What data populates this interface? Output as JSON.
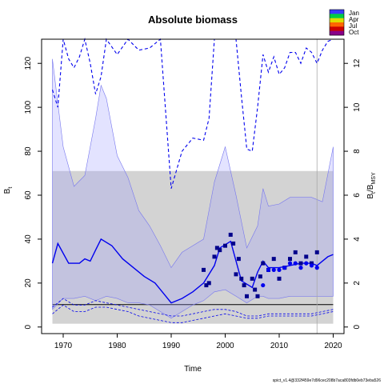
{
  "chart_data": {
    "type": "line",
    "title": "Absolute biomass",
    "xlabel": "Time",
    "ylabel_left": "B",
    "ylabel_left_sub": "t",
    "ylabel_right": "B",
    "ylabel_right_sub": "t",
    "ylabel_right_suffix": "/B",
    "ylabel_right_suffix_sub": "MSY",
    "xlim": [
      1966,
      2022
    ],
    "ylim_left": [
      -3,
      131
    ],
    "ylim_right": [
      -0.3,
      13.1
    ],
    "x_ticks": [
      1970,
      1980,
      1990,
      2000,
      2010,
      2020
    ],
    "y_ticks_left": [
      0,
      20,
      40,
      60,
      80,
      100,
      120
    ],
    "y_ticks_right": [
      0,
      2,
      4,
      6,
      8,
      10,
      12
    ],
    "bmsy_band": {
      "lower": 1.5,
      "upper": 71,
      "line": 10.2,
      "x_from": 1968,
      "x_to": 2020
    },
    "ci_x": [
      1968,
      1970,
      1972,
      1974,
      1976,
      1977,
      1978,
      1980,
      1982,
      1984,
      1986,
      1988,
      1990,
      1992,
      1994,
      1996,
      1998,
      2000,
      2002,
      2004,
      2006,
      2007,
      2008,
      2010,
      2012,
      2014,
      2016,
      2018,
      2020
    ],
    "ci_upper": [
      122,
      82,
      64,
      69,
      95,
      110,
      104,
      78,
      68,
      53,
      46,
      37,
      27,
      34,
      37,
      40,
      66,
      82,
      60,
      36,
      46,
      63,
      55,
      56,
      59,
      59,
      59,
      57,
      82
    ],
    "ci_lower": [
      8,
      13,
      13,
      14,
      12,
      13,
      14,
      13,
      11,
      11,
      10,
      7,
      4,
      7,
      10,
      12,
      16,
      17,
      14,
      11,
      14,
      14,
      13,
      13,
      14,
      14,
      14,
      14,
      14
    ],
    "biomass_x": [
      1968,
      1969,
      1971,
      1973,
      1974,
      1975,
      1976,
      1977,
      1979,
      1981,
      1983,
      1985,
      1987,
      1989,
      1990,
      1992,
      1994,
      1996,
      1998,
      1999,
      2001,
      2003,
      2005,
      2006,
      2007,
      2008,
      2010,
      2012,
      2014,
      2016,
      2017,
      2018,
      2019,
      2020
    ],
    "biomass_fit": [
      29,
      38,
      29,
      29,
      31,
      30,
      35,
      40,
      37,
      31,
      27,
      23,
      20,
      14,
      11,
      13,
      16,
      20,
      28,
      36,
      39,
      21,
      18,
      25,
      30,
      27,
      27,
      28,
      29,
      29,
      28,
      30,
      32,
      33
    ],
    "biomass_upper_x": [
      1968,
      1970,
      1972,
      1974,
      1976,
      1978,
      1980,
      1982,
      1984,
      1986,
      1988,
      1990,
      1992,
      1994,
      1996,
      1998,
      2000,
      2002,
      2004,
      2006,
      2008,
      2010,
      2012,
      2014,
      2016,
      2018,
      2020
    ],
    "biomass_upper": [
      9,
      13,
      10,
      10,
      12,
      11,
      10,
      9,
      8,
      7,
      6,
      5,
      5,
      6,
      7,
      8,
      8,
      7,
      5,
      5,
      6,
      6,
      6,
      6,
      6,
      7,
      8
    ],
    "biomass_lower": [
      6,
      10,
      7,
      7,
      9,
      9,
      8,
      7,
      5,
      4,
      3,
      2,
      2,
      3,
      4,
      5,
      6,
      5,
      4,
      4,
      5,
      5,
      5,
      5,
      5,
      6,
      7
    ],
    "fmsy_dashed_x": [
      1968,
      1969,
      1970,
      1971,
      1972,
      1973,
      1974,
      1975,
      1976,
      1977,
      1978,
      1980,
      1982,
      1984,
      1986,
      1988,
      1990,
      1992,
      1994,
      1996,
      1997,
      1998,
      2000,
      2002,
      2003,
      2004,
      2005,
      2006,
      2007,
      2008,
      2009,
      2010,
      2011,
      2012,
      2013,
      2014,
      2015,
      2016,
      2017,
      2018,
      2019,
      2020
    ],
    "fmsy_dashed": [
      10.8,
      10.0,
      13.4,
      12.2,
      11.8,
      12.3,
      13.5,
      12.0,
      10.6,
      11.4,
      14.0,
      12.4,
      13.2,
      12.6,
      12.7,
      13.4,
      6.3,
      8.0,
      8.6,
      8.5,
      9.5,
      14.5,
      16.0,
      14.0,
      10.5,
      8.1,
      8.0,
      10.0,
      12.4,
      11.6,
      12.3,
      11.5,
      11.8,
      12.5,
      12.5,
      12.0,
      12.7,
      12.5,
      12.0,
      12.6,
      13.0,
      13.5
    ],
    "index_points": {
      "x": [
        1996,
        1996.5,
        1997,
        1998,
        1998.5,
        1999,
        2000,
        2001,
        2001.5,
        2002,
        2002.5,
        2003,
        2003.5,
        2004,
        2005,
        2005.5,
        2006,
        2006.5,
        2007,
        2008,
        2009,
        2010,
        2011,
        2012,
        2013,
        2014,
        2015,
        2016,
        2017
      ],
      "y": [
        26,
        19,
        20,
        32,
        36,
        35,
        37,
        42,
        38,
        24,
        31,
        22,
        19,
        14,
        22,
        17,
        14,
        23,
        29,
        26,
        31,
        22,
        27,
        31,
        34,
        29,
        32,
        29,
        34
      ]
    },
    "index_points_secondary": {
      "x": [
        2007,
        2008,
        2009,
        2010,
        2011,
        2012,
        2013,
        2014,
        2015,
        2016,
        2017
      ],
      "y": [
        19,
        26,
        26,
        26,
        27,
        29,
        29,
        27,
        29,
        28,
        27
      ]
    },
    "vline_x": 2017,
    "legend": [
      "Jan",
      "Apr",
      "Jul",
      "Oct"
    ],
    "legend_colors": [
      "#3a3aff",
      "#00cc44",
      "#dddd00",
      "#ff6600",
      "#cc0000",
      "#880088"
    ],
    "colors": {
      "band": "#d3d3d3",
      "ci_fill": "#9999ff",
      "line": "#0000ee",
      "points": "#00008b",
      "vline": "#aaaaaa"
    },
    "footnote": "spict_v1.4@332f459e7d96cec208b7aca803fdb0eb73eba526"
  }
}
